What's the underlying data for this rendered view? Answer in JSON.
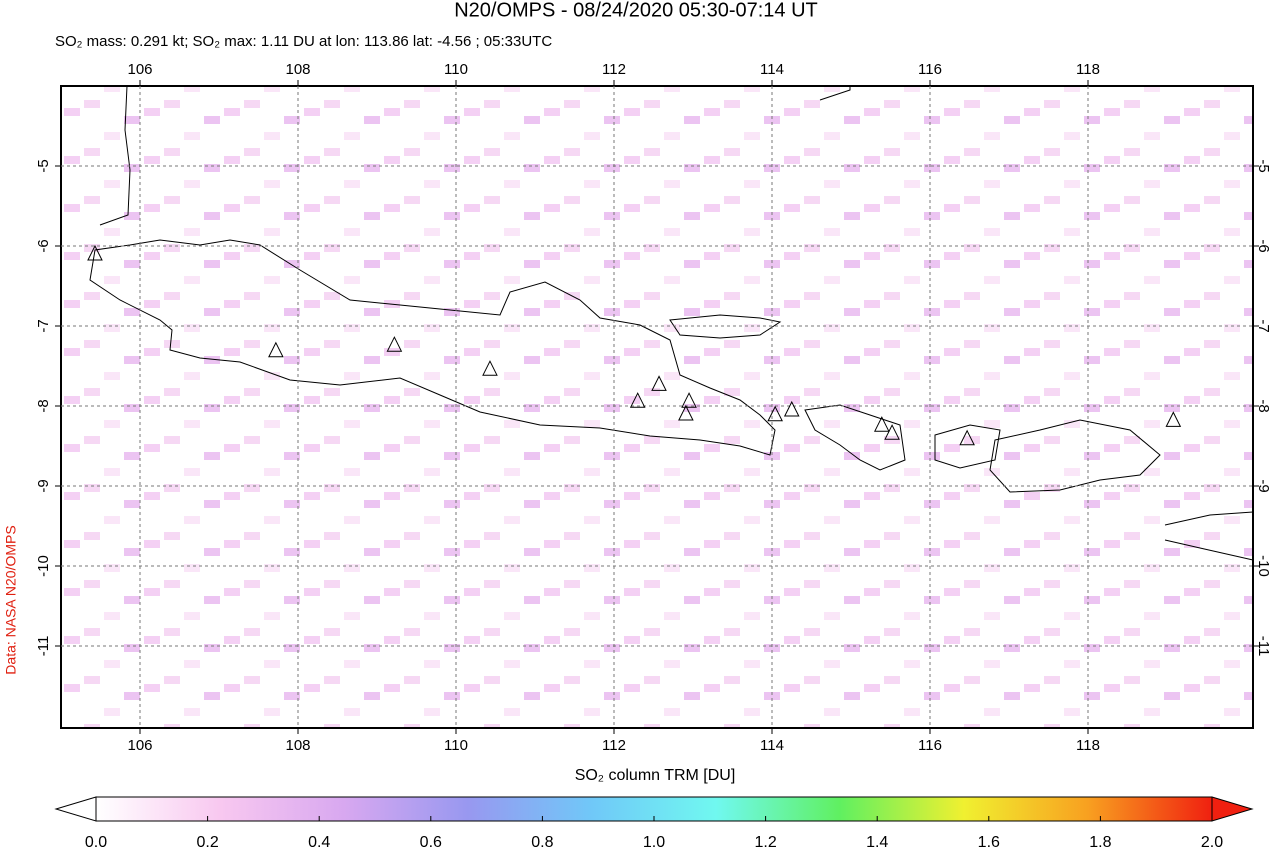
{
  "header": {
    "title": "N20/OMPS - 08/24/2020 05:30-07:14 UT",
    "subtitle": "SO₂ mass: 0.291 kt; SO₂ max: 1.11 DU at lon: 113.86 lat: -4.56 ; 05:33UTC",
    "credit": "Data: NASA N20/OMPS"
  },
  "map": {
    "xlim": [
      105,
      120
    ],
    "ylim": [
      -4,
      -12
    ],
    "xticks": [
      106,
      108,
      110,
      112,
      114,
      116,
      118
    ],
    "yticks": [
      -5,
      -6,
      -7,
      -8,
      -9,
      -10,
      -11
    ],
    "volcanoes": {
      "lon": [
        105.43,
        107.72,
        109.22,
        110.43,
        112.3,
        112.57,
        112.95,
        112.91,
        114.04,
        114.25,
        115.39,
        115.52,
        116.47,
        119.08
      ],
      "lat": [
        -6.1,
        -7.31,
        -7.24,
        -7.54,
        -7.94,
        -7.73,
        -7.94,
        -8.1,
        -8.11,
        -8.05,
        -8.24,
        -8.34,
        -8.41,
        -8.18
      ]
    }
  },
  "colorbar": {
    "label": "SO₂ column TRM [DU]",
    "lim": [
      0,
      2
    ],
    "ticks": [
      {
        "value": 0,
        "label": "0.0"
      },
      {
        "value": 0.2,
        "label": "0.2"
      },
      {
        "value": 0.4,
        "label": "0.4"
      },
      {
        "value": 0.6,
        "label": "0.6"
      },
      {
        "value": 0.8,
        "label": "0.8"
      },
      {
        "value": 1,
        "label": "1.0"
      },
      {
        "value": 1.2,
        "label": "1.2"
      },
      {
        "value": 1.4,
        "label": "1.4"
      },
      {
        "value": 1.6,
        "label": "1.6"
      },
      {
        "value": 1.8,
        "label": "1.8"
      },
      {
        "value": 2,
        "label": "2.0"
      }
    ],
    "colors": [
      "#ffffff",
      "#f8c8f0",
      "#d8a8f0",
      "#9898f0",
      "#70c8f8",
      "#70f8f0",
      "#60f060",
      "#f0f030",
      "#f8a020",
      "#f02010"
    ]
  }
}
